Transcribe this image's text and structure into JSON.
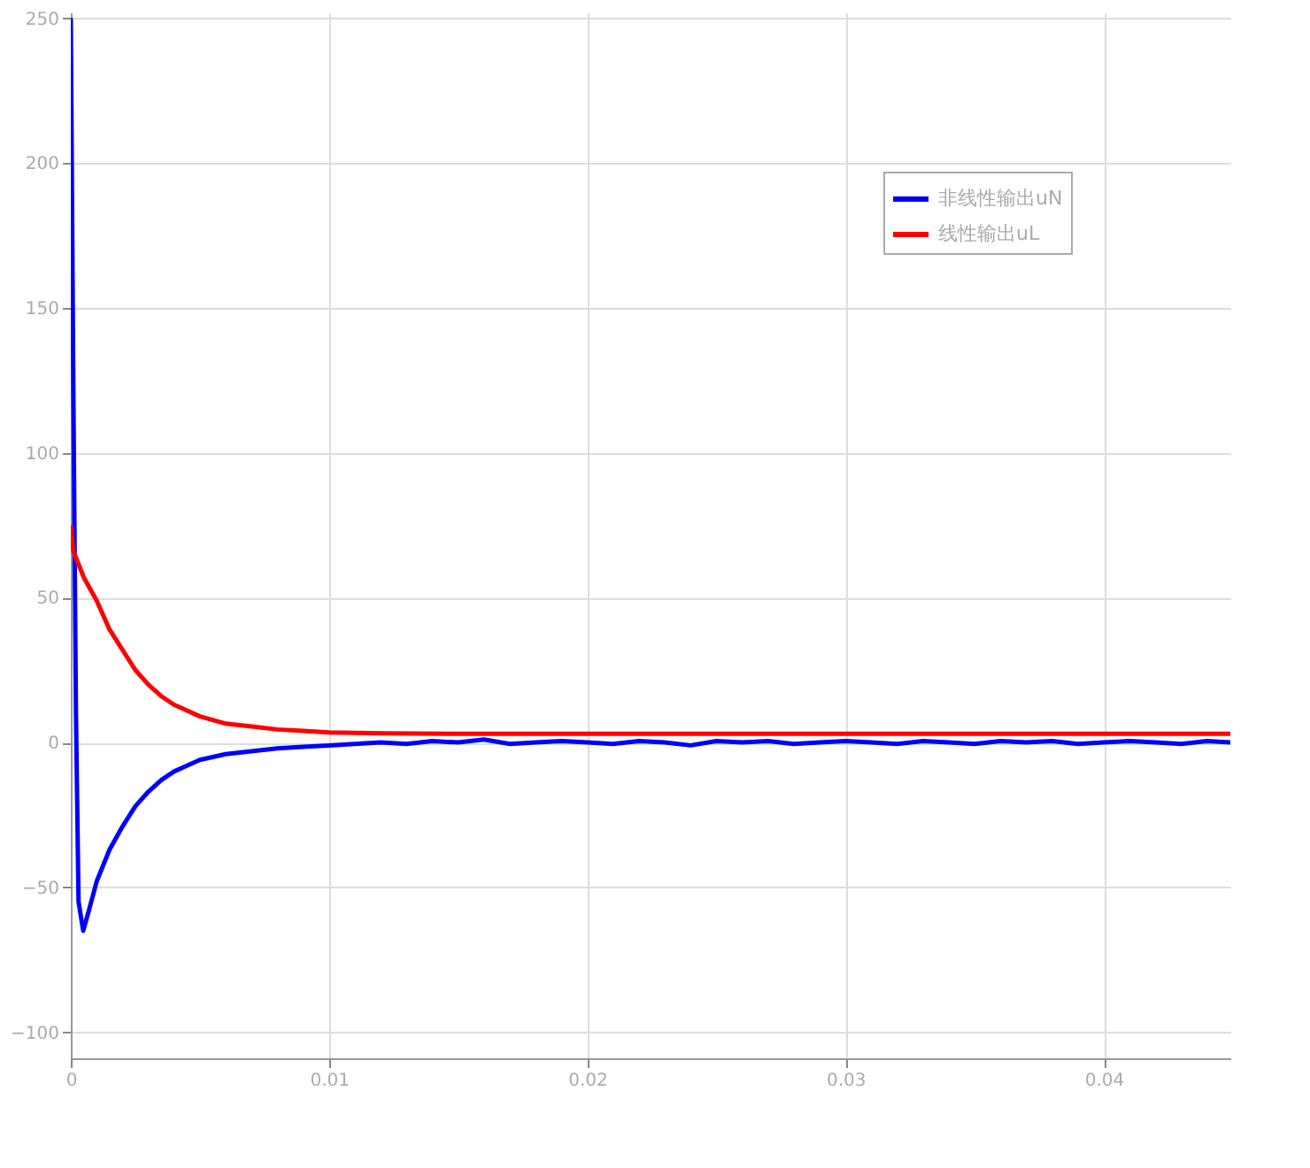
{
  "chart_data": {
    "type": "line",
    "xlim": [
      0,
      0.0449
    ],
    "ylim": [
      -109,
      252
    ],
    "xticks": [
      0,
      0.01,
      0.02,
      0.03,
      0.04
    ],
    "yticks": [
      -100,
      -50,
      0,
      50,
      100,
      150,
      200,
      250
    ],
    "grid": true,
    "legend": "top right",
    "line_style": "solid",
    "marker": "none",
    "series": [
      {
        "name": "非线性输出uN",
        "color": "#0000ff",
        "x": [
          0,
          0.0001,
          0.0002,
          0.0003,
          0.00048,
          0.0007,
          0.001,
          0.0015,
          0.002,
          0.0025,
          0.003,
          0.0035,
          0.004,
          0.0045,
          0.005,
          0.0055,
          0.006,
          0.007,
          0.008,
          0.009,
          0.01,
          0.011,
          0.012,
          0.013,
          0.014,
          0.015,
          0.016,
          0.017,
          0.018,
          0.019,
          0.02,
          0.021,
          0.022,
          0.023,
          0.024,
          0.025,
          0.026,
          0.027,
          0.028,
          0.029,
          0.03,
          0.031,
          0.032,
          0.033,
          0.034,
          0.035,
          0.036,
          0.037,
          0.038,
          0.039,
          0.04,
          0.041,
          0.042,
          0.043,
          0.044,
          0.0449
        ],
        "values": [
          250,
          120,
          10,
          -55,
          -65,
          -58,
          -48,
          -37,
          -29,
          -22,
          -17,
          -13,
          -10,
          -8,
          -6,
          -5,
          -4,
          -3,
          -2,
          -1.5,
          -1,
          -0.5,
          0,
          -0.5,
          0.5,
          0,
          1,
          -0.5,
          0,
          0.5,
          0,
          -0.5,
          0.5,
          0,
          -1,
          0.5,
          0,
          0.5,
          -0.5,
          0,
          0.5,
          0,
          -0.5,
          0.5,
          0,
          -0.5,
          0.5,
          0,
          0.5,
          -0.5,
          0,
          0.5,
          0,
          -0.5,
          0.5,
          0
        ]
      },
      {
        "name": "线性输出uL",
        "color": "#ff0000",
        "x": [
          0,
          0.0001,
          0.0005,
          0.001,
          0.0015,
          0.002,
          0.0025,
          0.003,
          0.0035,
          0.004,
          0.0045,
          0.005,
          0.006,
          0.007,
          0.008,
          0.009,
          0.01,
          0.012,
          0.015,
          0.02,
          0.03,
          0.04,
          0.0449
        ],
        "values": [
          75,
          66,
          57,
          49,
          39,
          32,
          25,
          20,
          16,
          13,
          11,
          9,
          6.5,
          5.5,
          4.5,
          4,
          3.5,
          3.2,
          3,
          3,
          3,
          3,
          3
        ]
      }
    ]
  }
}
